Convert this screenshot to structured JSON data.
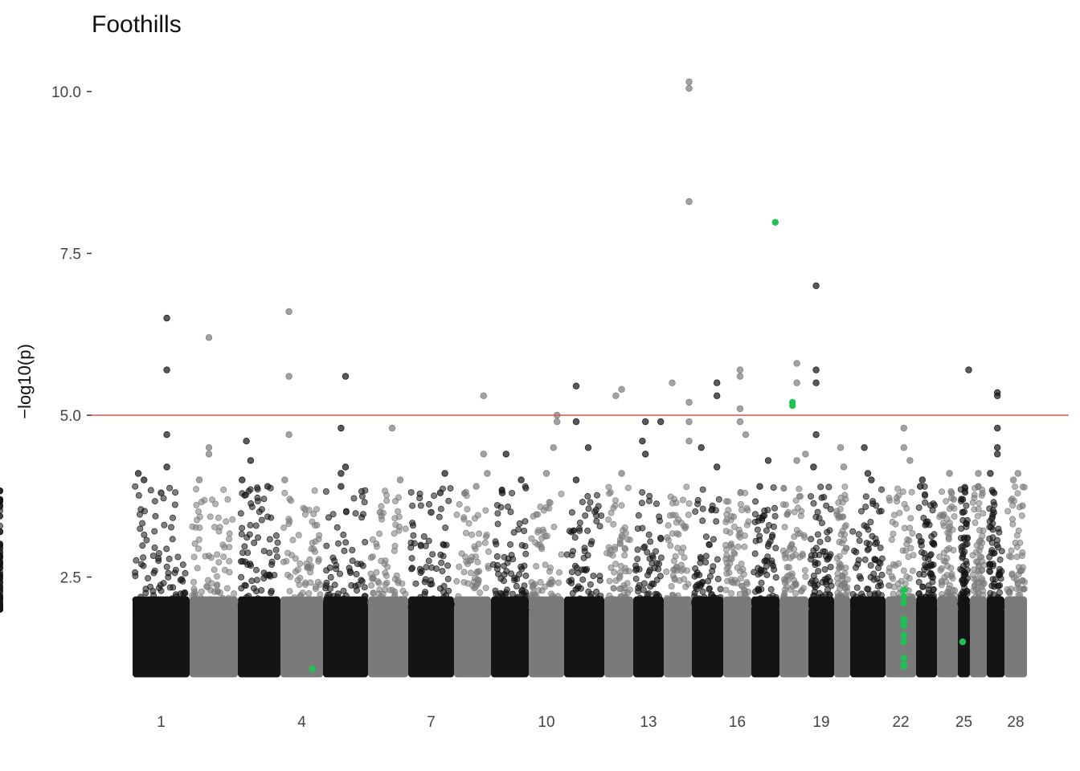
{
  "chart_data": {
    "type": "scatter",
    "subtype": "manhattan",
    "title": "Foothills",
    "xlabel": "",
    "ylabel": "−log10(p)",
    "y_ticks": [
      "2.5",
      "5.0",
      "7.5",
      "10.0"
    ],
    "y_tick_values": [
      2.5,
      5.0,
      7.5,
      10.0
    ],
    "ylim": [
      1.0,
      10.2
    ],
    "x_tick_labels": [
      "1",
      "4",
      "7",
      "10",
      "13",
      "16",
      "19",
      "22",
      "25",
      "28"
    ],
    "x_tick_chromosomes": [
      1,
      4,
      7,
      10,
      13,
      16,
      19,
      22,
      25,
      28
    ],
    "threshold": 5.0,
    "grid": false,
    "legend": "none",
    "colors": {
      "odd_chromosome": "#141414",
      "even_chromosome": "#7a7a7a",
      "highlight": "#1fc152",
      "threshold_line": "#d9534f"
    },
    "chromosomes": [
      {
        "chr": 1,
        "peak_points": [
          [
            0.6,
            6.5
          ],
          [
            0.6,
            5.7
          ],
          [
            0.6,
            4.7
          ],
          [
            0.6,
            4.2
          ],
          [
            0.5,
            3.8
          ],
          [
            0.1,
            4.1
          ],
          [
            0.2,
            4.0
          ]
        ]
      },
      {
        "chr": 2,
        "peak_points": [
          [
            0.4,
            6.2
          ],
          [
            0.4,
            4.5
          ],
          [
            0.4,
            4.4
          ],
          [
            0.2,
            4.0
          ]
        ]
      },
      {
        "chr": 3,
        "peak_points": [
          [
            0.2,
            4.6
          ],
          [
            0.3,
            4.3
          ],
          [
            0.1,
            4.0
          ],
          [
            0.7,
            3.9
          ]
        ]
      },
      {
        "chr": 4,
        "peak_points": [
          [
            0.2,
            6.6
          ],
          [
            0.2,
            5.6
          ],
          [
            0.2,
            4.7
          ],
          [
            0.1,
            4.0
          ]
        ]
      },
      {
        "chr": 5,
        "peak_points": [
          [
            0.5,
            5.6
          ],
          [
            0.4,
            4.8
          ],
          [
            0.5,
            4.2
          ],
          [
            0.4,
            4.1
          ],
          [
            0.4,
            3.9
          ]
        ]
      },
      {
        "chr": 6,
        "peak_points": [
          [
            0.6,
            4.8
          ],
          [
            0.8,
            4.0
          ],
          [
            0.3,
            3.5
          ]
        ]
      },
      {
        "chr": 7,
        "peak_points": [
          [
            0.8,
            4.1
          ],
          [
            0.7,
            3.8
          ],
          [
            0.5,
            3.5
          ]
        ]
      },
      {
        "chr": 8,
        "peak_points": [
          [
            0.8,
            5.3
          ],
          [
            0.8,
            4.4
          ],
          [
            0.9,
            4.1
          ],
          [
            0.6,
            3.9
          ]
        ]
      },
      {
        "chr": 9,
        "peak_points": [
          [
            0.4,
            4.4
          ],
          [
            0.8,
            4.0
          ],
          [
            0.3,
            3.8
          ]
        ]
      },
      {
        "chr": 10,
        "peak_points": [
          [
            0.8,
            5.0
          ],
          [
            0.8,
            4.9
          ],
          [
            0.7,
            4.5
          ],
          [
            0.5,
            4.1
          ]
        ]
      },
      {
        "chr": 11,
        "peak_points": [
          [
            0.3,
            5.45
          ],
          [
            0.3,
            4.9
          ],
          [
            0.6,
            4.5
          ],
          [
            0.3,
            4.0
          ]
        ]
      },
      {
        "chr": 12,
        "peak_points": [
          [
            0.4,
            5.3
          ],
          [
            0.6,
            5.4
          ],
          [
            0.6,
            4.1
          ]
        ]
      },
      {
        "chr": 13,
        "peak_points": [
          [
            0.4,
            4.9
          ],
          [
            0.3,
            4.6
          ],
          [
            0.4,
            4.4
          ],
          [
            0.9,
            4.9
          ]
        ]
      },
      {
        "chr": 14,
        "peak_points": [
          [
            0.3,
            5.5
          ],
          [
            0.9,
            10.15
          ],
          [
            0.9,
            10.05
          ],
          [
            0.9,
            8.3
          ],
          [
            0.9,
            5.2
          ],
          [
            0.9,
            4.9
          ],
          [
            0.9,
            4.6
          ]
        ]
      },
      {
        "chr": 15,
        "peak_points": [
          [
            0.8,
            5.5
          ],
          [
            0.8,
            5.3
          ],
          [
            0.3,
            4.5
          ],
          [
            0.8,
            4.2
          ]
        ]
      },
      {
        "chr": 16,
        "peak_points": [
          [
            0.6,
            5.7
          ],
          [
            0.6,
            5.6
          ],
          [
            0.6,
            5.1
          ],
          [
            0.6,
            4.9
          ],
          [
            0.8,
            4.7
          ]
        ]
      },
      {
        "chr": 17,
        "peak_points": [
          [
            0.6,
            4.3
          ],
          [
            0.3,
            3.9
          ]
        ]
      },
      {
        "chr": 18,
        "peak_points": [
          [
            0.6,
            5.8
          ],
          [
            0.6,
            5.5
          ],
          [
            0.6,
            4.3
          ],
          [
            0.9,
            4.4
          ]
        ]
      },
      {
        "chr": 19,
        "peak_points": [
          [
            0.3,
            7.0
          ],
          [
            0.3,
            5.7
          ],
          [
            0.3,
            5.5
          ],
          [
            0.3,
            4.7
          ],
          [
            0.2,
            4.2
          ]
        ]
      },
      {
        "chr": 20,
        "peak_points": [
          [
            0.4,
            4.5
          ],
          [
            0.6,
            4.2
          ]
        ]
      },
      {
        "chr": 21,
        "peak_points": [
          [
            0.4,
            4.5
          ],
          [
            0.5,
            4.1
          ],
          [
            0.6,
            4.0
          ]
        ]
      },
      {
        "chr": 22,
        "peak_points": [
          [
            0.6,
            4.8
          ],
          [
            0.6,
            4.5
          ],
          [
            0.8,
            4.3
          ]
        ]
      },
      {
        "chr": 23,
        "peak_points": [
          [
            0.3,
            4.0
          ],
          [
            0.2,
            3.9
          ]
        ]
      },
      {
        "chr": 24,
        "peak_points": [
          [
            0.6,
            4.1
          ],
          [
            0.7,
            3.8
          ],
          [
            0.8,
            3.7
          ]
        ]
      },
      {
        "chr": 25,
        "peak_points": [
          [
            0.9,
            5.7
          ],
          [
            0.4,
            3.7
          ],
          [
            0.4,
            3.5
          ]
        ]
      },
      {
        "chr": 26,
        "peak_points": [
          [
            0.5,
            4.1
          ],
          [
            0.5,
            3.9
          ]
        ]
      },
      {
        "chr": 27,
        "peak_points": [
          [
            0.6,
            5.35
          ],
          [
            0.6,
            5.3
          ],
          [
            0.6,
            4.8
          ],
          [
            0.6,
            4.5
          ],
          [
            0.6,
            4.4
          ],
          [
            0.2,
            4.1
          ]
        ]
      },
      {
        "chr": 28,
        "peak_points": [
          [
            0.6,
            4.1
          ],
          [
            0.4,
            4.0
          ],
          [
            0.8,
            3.6
          ]
        ]
      },
      {
        "chr": 29,
        "peak_points": [
          [
            0.5,
            3.7
          ],
          [
            0.2,
            3.2
          ]
        ]
      }
    ],
    "highlighted_points": [
      {
        "chr": 4,
        "pos": 0.75,
        "y": 1.08
      },
      {
        "chr": 17,
        "pos": 0.85,
        "y": 7.98
      },
      {
        "chr": 18,
        "pos": 0.45,
        "y": 5.2
      },
      {
        "chr": 18,
        "pos": 0.45,
        "y": 5.15
      },
      {
        "chr": 22,
        "pos": 0.6,
        "y": 2.3
      },
      {
        "chr": 22,
        "pos": 0.6,
        "y": 2.2
      },
      {
        "chr": 22,
        "pos": 0.6,
        "y": 2.1
      },
      {
        "chr": 22,
        "pos": 0.6,
        "y": 1.85
      },
      {
        "chr": 22,
        "pos": 0.6,
        "y": 1.8
      },
      {
        "chr": 22,
        "pos": 0.6,
        "y": 1.75
      },
      {
        "chr": 22,
        "pos": 0.6,
        "y": 1.6
      },
      {
        "chr": 22,
        "pos": 0.6,
        "y": 1.5
      },
      {
        "chr": 22,
        "pos": 0.6,
        "y": 1.25
      },
      {
        "chr": 22,
        "pos": 0.6,
        "y": 1.15
      },
      {
        "chr": 22,
        "pos": 0.6,
        "y": 1.12
      },
      {
        "chr": 25,
        "pos": 0.4,
        "y": 1.5
      }
    ]
  }
}
